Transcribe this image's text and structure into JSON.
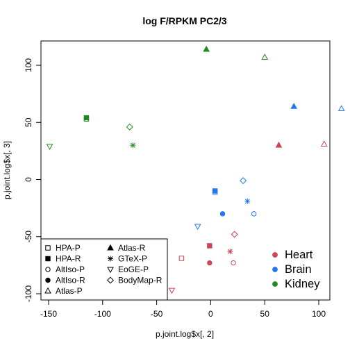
{
  "chart_data": {
    "type": "scatter",
    "title": "log F/RPKM PC2/3",
    "xlabel": "p.joint.log$x[, 2]",
    "ylabel": "p.joint.log$x[, 3]",
    "xlim": [
      -155,
      125
    ],
    "ylim": [
      -104,
      121
    ],
    "xticks": [
      -150,
      -100,
      -50,
      0,
      50,
      100
    ],
    "yticks": [
      -100,
      -50,
      0,
      50,
      100
    ],
    "grid": false,
    "colors": {
      "Heart": "#cc4455",
      "Brain": "#2277ee",
      "Kidney": "#228822"
    },
    "shape_legend": [
      {
        "label": "HPA-P",
        "shape": "square-open"
      },
      {
        "label": "HPA-R",
        "shape": "square-filled"
      },
      {
        "label": "AltIso-P",
        "shape": "circle-open"
      },
      {
        "label": "AltIso-R",
        "shape": "circle-filled"
      },
      {
        "label": "Atlas-P",
        "shape": "triangle-open"
      },
      {
        "label": "Atlas-R",
        "shape": "triangle-filled"
      },
      {
        "label": "GTeX-P",
        "shape": "asterisk"
      },
      {
        "label": "EoGE-P",
        "shape": "triangle-down-open"
      },
      {
        "label": "BodyMap-R",
        "shape": "diamond-open"
      }
    ],
    "color_legend": [
      {
        "label": "Heart",
        "color": "#cc4455"
      },
      {
        "label": "Brain",
        "color": "#2277ee"
      },
      {
        "label": "Kidney",
        "color": "#228822"
      }
    ],
    "points": [
      {
        "group": "Heart",
        "shape": "square-open",
        "x": -27,
        "y": -69
      },
      {
        "group": "Heart",
        "shape": "square-filled",
        "x": -1,
        "y": -58
      },
      {
        "group": "Heart",
        "shape": "circle-open",
        "x": 21,
        "y": -73
      },
      {
        "group": "Heart",
        "shape": "circle-filled",
        "x": -1,
        "y": -73
      },
      {
        "group": "Heart",
        "shape": "triangle-open",
        "x": 105,
        "y": 31
      },
      {
        "group": "Heart",
        "shape": "triangle-filled",
        "x": 63,
        "y": 30
      },
      {
        "group": "Heart",
        "shape": "asterisk",
        "x": 18,
        "y": -63
      },
      {
        "group": "Heart",
        "shape": "triangle-down-open",
        "x": -36,
        "y": -97
      },
      {
        "group": "Heart",
        "shape": "diamond-open",
        "x": 22,
        "y": -48
      },
      {
        "group": "Brain",
        "shape": "square-open",
        "x": 4,
        "y": -11
      },
      {
        "group": "Brain",
        "shape": "square-filled",
        "x": 4,
        "y": -10
      },
      {
        "group": "Brain",
        "shape": "circle-open",
        "x": 40,
        "y": -30
      },
      {
        "group": "Brain",
        "shape": "circle-filled",
        "x": 11,
        "y": -30
      },
      {
        "group": "Brain",
        "shape": "triangle-open",
        "x": 121,
        "y": 62
      },
      {
        "group": "Brain",
        "shape": "triangle-filled",
        "x": 77,
        "y": 64
      },
      {
        "group": "Brain",
        "shape": "asterisk",
        "x": 34,
        "y": -19
      },
      {
        "group": "Brain",
        "shape": "triangle-down-open",
        "x": -12,
        "y": -41
      },
      {
        "group": "Brain",
        "shape": "diamond-open",
        "x": 30,
        "y": -1
      },
      {
        "group": "Kidney",
        "shape": "square-open",
        "x": -115,
        "y": 53
      },
      {
        "group": "Kidney",
        "shape": "square-filled",
        "x": -115,
        "y": 54
      },
      {
        "group": "Kidney",
        "shape": "triangle-open",
        "x": 50,
        "y": 107
      },
      {
        "group": "Kidney",
        "shape": "triangle-filled",
        "x": -4,
        "y": 114
      },
      {
        "group": "Kidney",
        "shape": "asterisk",
        "x": -72,
        "y": 30
      },
      {
        "group": "Kidney",
        "shape": "triangle-down-open",
        "x": -149,
        "y": 29
      },
      {
        "group": "Kidney",
        "shape": "diamond-open",
        "x": -75,
        "y": 46
      }
    ]
  }
}
